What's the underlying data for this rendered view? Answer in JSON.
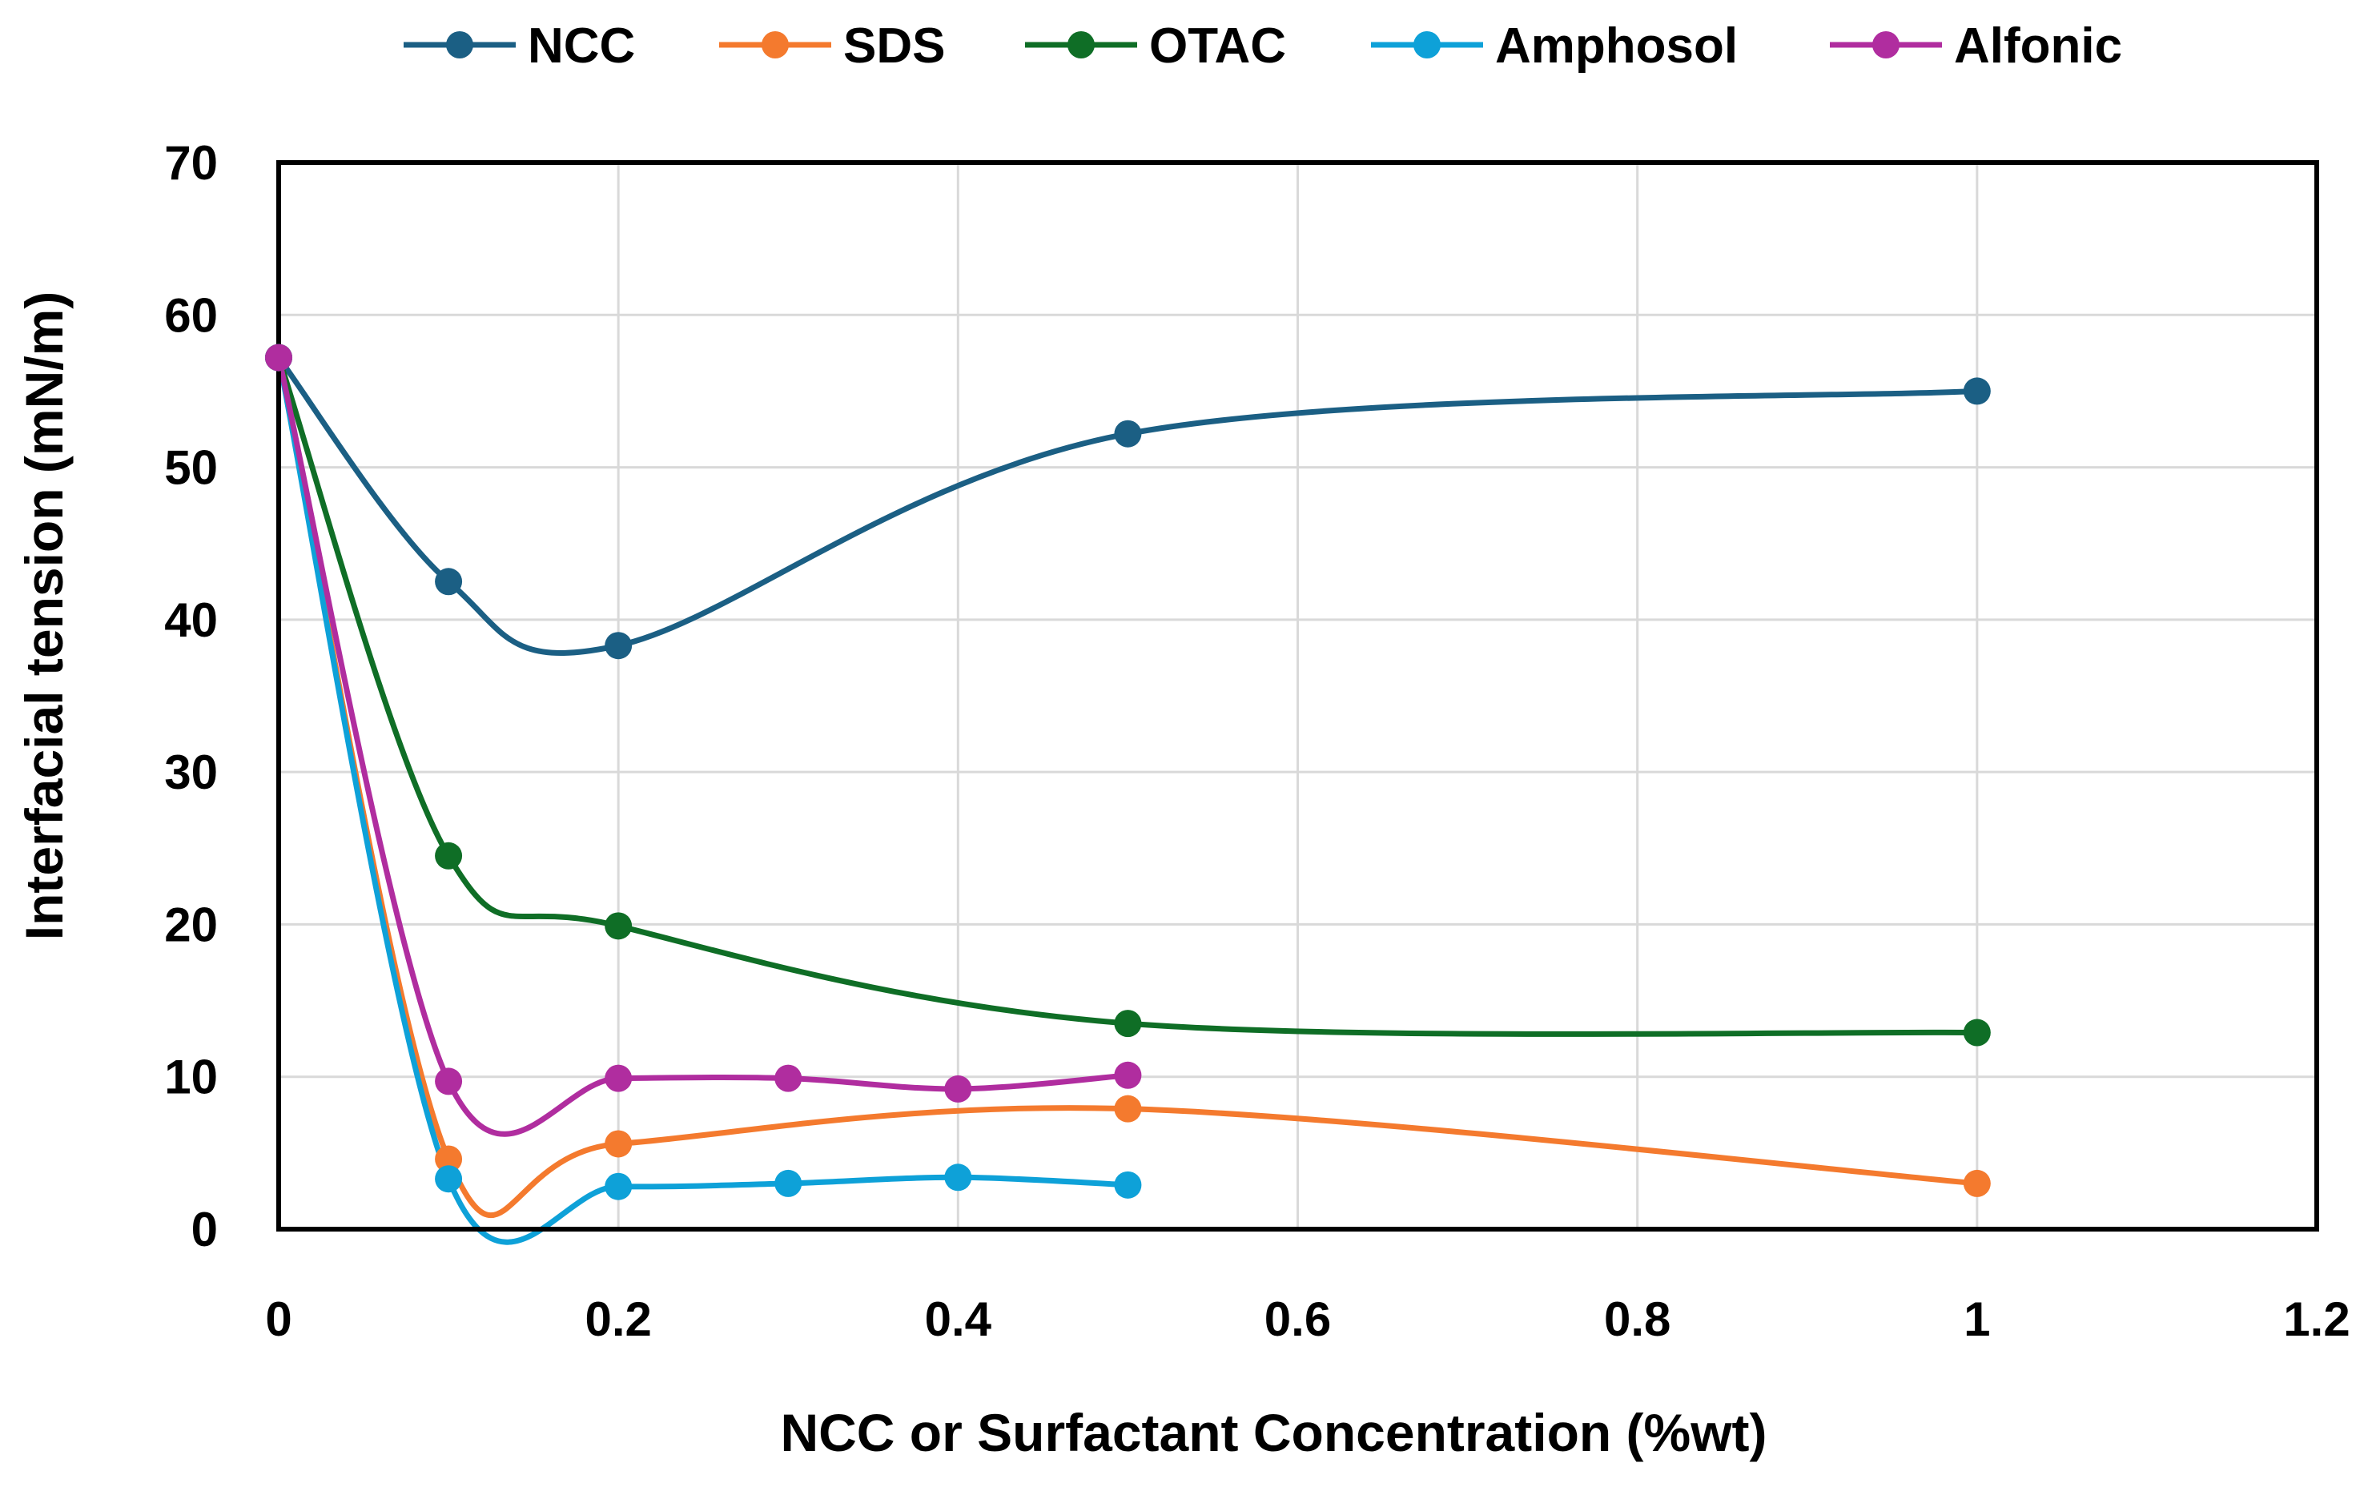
{
  "chart_data": {
    "type": "line",
    "title": "",
    "xlabel": "NCC or Surfactant Concentration (%wt)",
    "ylabel": "Interfacial tension (mN/m)",
    "xlim": [
      0,
      1.2
    ],
    "ylim": [
      0,
      70
    ],
    "x_ticks": [
      "0",
      "0.2",
      "0.4",
      "0.6",
      "0.8",
      "1",
      "1.2"
    ],
    "y_ticks": [
      "0",
      "10",
      "20",
      "30",
      "40",
      "50",
      "60",
      "70"
    ],
    "grid": true,
    "legend_position": "top",
    "smooth": true,
    "series": [
      {
        "name": "NCC",
        "color": "#1B5F84",
        "points": [
          [
            0,
            57.2
          ],
          [
            0.1,
            42.5
          ],
          [
            0.2,
            38.3
          ],
          [
            0.5,
            52.2
          ],
          [
            1.0,
            55.0
          ]
        ]
      },
      {
        "name": "SDS",
        "color": "#F47A2E",
        "points": [
          [
            0,
            57.2
          ],
          [
            0.1,
            4.6
          ],
          [
            0.2,
            5.6
          ],
          [
            0.5,
            7.9
          ],
          [
            1.0,
            3.0
          ]
        ]
      },
      {
        "name": "OTAC",
        "color": "#0F6E26",
        "points": [
          [
            0,
            57.2
          ],
          [
            0.1,
            24.5
          ],
          [
            0.2,
            19.9
          ],
          [
            0.5,
            13.5
          ],
          [
            1.0,
            12.9
          ]
        ]
      },
      {
        "name": "Amphosol",
        "color": "#0EA1D8",
        "points": [
          [
            0,
            57.2
          ],
          [
            0.1,
            3.3
          ],
          [
            0.2,
            2.8
          ],
          [
            0.3,
            3.0
          ],
          [
            0.4,
            3.4
          ],
          [
            0.5,
            2.9
          ]
        ]
      },
      {
        "name": "Alfonic",
        "color": "#B02D9F",
        "points": [
          [
            0,
            57.2
          ],
          [
            0.1,
            9.7
          ],
          [
            0.2,
            9.9
          ],
          [
            0.3,
            9.9
          ],
          [
            0.4,
            9.2
          ],
          [
            0.5,
            10.1
          ]
        ]
      }
    ]
  }
}
